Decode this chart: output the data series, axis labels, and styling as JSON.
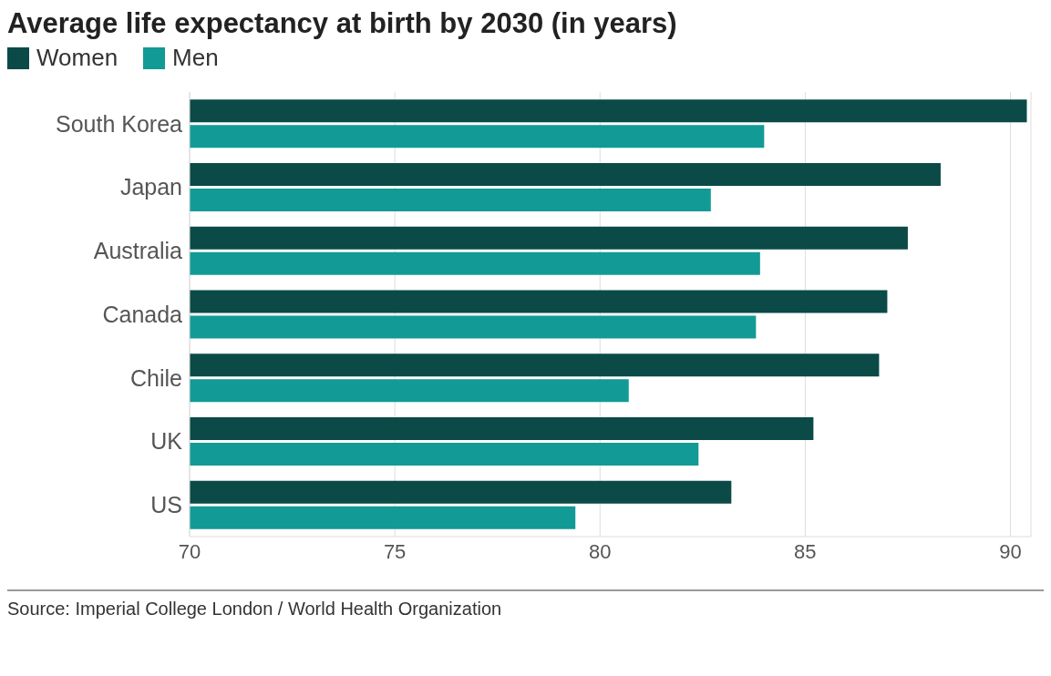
{
  "chart_data": {
    "type": "bar",
    "orientation": "horizontal",
    "title": "Average life expectancy at birth by 2030 (in years)",
    "categories": [
      "South Korea",
      "Japan",
      "Australia",
      "Canada",
      "Chile",
      "UK",
      "US"
    ],
    "series": [
      {
        "name": "Women",
        "color": "#0b4a47",
        "values": [
          90.4,
          88.3,
          87.5,
          87.0,
          86.8,
          85.2,
          83.2
        ]
      },
      {
        "name": "Men",
        "color": "#129a96",
        "values": [
          84.0,
          82.7,
          83.9,
          83.8,
          80.7,
          82.4,
          79.4
        ]
      }
    ],
    "xlim": [
      70,
      90.5
    ],
    "xticks": [
      70,
      75,
      80,
      85,
      90
    ],
    "grid": "x",
    "legend": "top left",
    "annotations": [
      "Source: Imperial College London / World Health Organization"
    ]
  }
}
